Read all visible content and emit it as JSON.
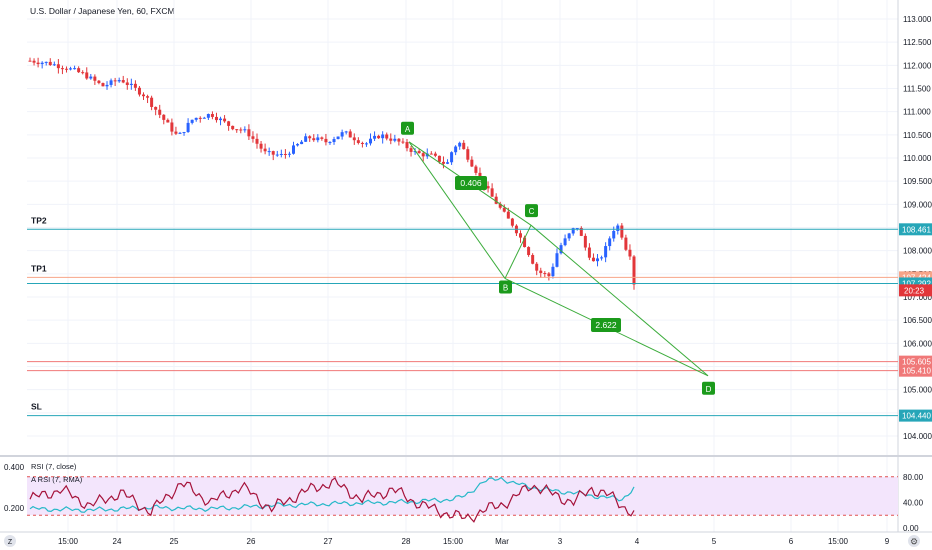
{
  "header": {
    "title": "U.S. Dollar / Japanese Yen, 60, FXCM"
  },
  "colors": {
    "up": "#2962ff",
    "down": "#e2363a",
    "pattern": "#3cac3c",
    "teal": "#26a6b8",
    "orange": "#f7a488",
    "red": "#f07878",
    "rsi_bg": "#f3e5fc"
  },
  "price_axis": {
    "ticks": [
      "113.000",
      "112.500",
      "112.000",
      "111.500",
      "111.000",
      "110.500",
      "110.000",
      "109.500",
      "109.000",
      "108.500",
      "108.000",
      "107.500",
      "107.000",
      "106.500",
      "106.000",
      "105.500",
      "105.000",
      "104.500",
      "104.000"
    ]
  },
  "time_axis": {
    "ticks": [
      "15:00",
      "24",
      "25",
      "26",
      "27",
      "28",
      "15:00",
      "Mar",
      "3",
      "4",
      "5",
      "6",
      "15:00",
      "9"
    ]
  },
  "levels": [
    {
      "label": "TP2",
      "price": 108.461,
      "value_text": "108.461",
      "color": "#26a6b8"
    },
    {
      "label": "TP1",
      "price": 107.424,
      "value_text": "107.424",
      "color": "#f7a488"
    },
    {
      "label": "",
      "price": 107.292,
      "value_text": "107.292",
      "color": "#26a6b8"
    },
    {
      "label": "",
      "price": 105.605,
      "value_text": "105.605",
      "color": "#f07878"
    },
    {
      "label": "",
      "price": 105.41,
      "value_text": "105.410",
      "color": "#f07878"
    },
    {
      "label": "SL",
      "price": 104.44,
      "value_text": "104.440",
      "color": "#26a6b8"
    }
  ],
  "current_price": {
    "price": 107.3,
    "countdown": "20:23",
    "color": "#e2363a"
  },
  "pattern": {
    "points": [
      {
        "label": "A",
        "price": 110.35
      },
      {
        "label": "B",
        "price": 107.4
      },
      {
        "label": "C",
        "price": 108.55
      },
      {
        "label": "D",
        "price": 105.3
      }
    ],
    "ratios": [
      "0.406",
      "2.622"
    ]
  },
  "rsi": {
    "legend_1": "RSI (7, close)",
    "legend_2": "A RSI (7, RMA)",
    "left_ticks": [
      "0.400",
      "0.200"
    ],
    "right_ticks": [
      "80.00",
      "40.00",
      "0.00"
    ],
    "upper_band": 80,
    "lower_band": 20
  },
  "footer": {
    "left_icon": "Z",
    "right_icon": "gear-icon"
  },
  "chart_data": {
    "type": "candlestick",
    "title": "U.S. Dollar / Japanese Yen, 60, FXCM",
    "xlabel": "",
    "ylabel": "",
    "ylim": [
      103.6,
      113.3
    ],
    "shape": [
      [
        0,
        112.1
      ],
      [
        0.03,
        112.05
      ],
      [
        0.06,
        111.95
      ],
      [
        0.09,
        111.8
      ],
      [
        0.12,
        111.55
      ],
      [
        0.15,
        111.7
      ],
      [
        0.19,
        111.35
      ],
      [
        0.22,
        110.85
      ],
      [
        0.245,
        110.45
      ],
      [
        0.27,
        110.85
      ],
      [
        0.3,
        110.95
      ],
      [
        0.33,
        110.7
      ],
      [
        0.36,
        110.55
      ],
      [
        0.39,
        110.1
      ],
      [
        0.42,
        110.05
      ],
      [
        0.46,
        110.45
      ],
      [
        0.49,
        110.35
      ],
      [
        0.52,
        110.55
      ],
      [
        0.555,
        110.3
      ],
      [
        0.58,
        110.5
      ],
      [
        0.61,
        110.35
      ],
      [
        0.64,
        110.1
      ],
      [
        0.665,
        110.05
      ],
      [
        0.69,
        109.85
      ],
      [
        0.7,
        110.2
      ],
      [
        0.71,
        110.35
      ],
      [
        0.735,
        109.8
      ],
      [
        0.76,
        109.25
      ],
      [
        0.79,
        108.7
      ],
      [
        0.8,
        108.55
      ],
      [
        0.82,
        108.1
      ],
      [
        0.84,
        107.55
      ],
      [
        0.86,
        107.45
      ],
      [
        0.875,
        108.05
      ],
      [
        0.89,
        108.3
      ],
      [
        0.905,
        108.55
      ],
      [
        0.92,
        108.05
      ],
      [
        0.935,
        107.7
      ],
      [
        0.95,
        107.95
      ],
      [
        0.965,
        108.45
      ],
      [
        0.975,
        108.55
      ],
      [
        0.985,
        108.1
      ],
      [
        0.995,
        107.9
      ],
      [
        1.0,
        107.3
      ]
    ],
    "rsi_shape": [
      [
        0,
        45
      ],
      [
        0.05,
        60
      ],
      [
        0.1,
        35
      ],
      [
        0.15,
        55
      ],
      [
        0.2,
        25
      ],
      [
        0.25,
        70
      ],
      [
        0.3,
        40
      ],
      [
        0.35,
        65
      ],
      [
        0.4,
        30
      ],
      [
        0.45,
        55
      ],
      [
        0.5,
        72
      ],
      [
        0.55,
        45
      ],
      [
        0.6,
        60
      ],
      [
        0.65,
        35
      ],
      [
        0.7,
        20
      ],
      [
        0.72,
        15
      ],
      [
        0.76,
        30
      ],
      [
        0.8,
        45
      ],
      [
        0.83,
        68
      ],
      [
        0.86,
        55
      ],
      [
        0.9,
        40
      ],
      [
        0.93,
        62
      ],
      [
        0.96,
        50
      ],
      [
        1.0,
        22
      ]
    ],
    "arsi_shape": [
      [
        0,
        30
      ],
      [
        0.1,
        28
      ],
      [
        0.2,
        32
      ],
      [
        0.3,
        30
      ],
      [
        0.4,
        35
      ],
      [
        0.5,
        38
      ],
      [
        0.6,
        40
      ],
      [
        0.65,
        42
      ],
      [
        0.7,
        45
      ],
      [
        0.72,
        50
      ],
      [
        0.75,
        72
      ],
      [
        0.78,
        78
      ],
      [
        0.8,
        70
      ],
      [
        0.85,
        60
      ],
      [
        0.9,
        55
      ],
      [
        0.95,
        48
      ],
      [
        0.98,
        45
      ],
      [
        1.0,
        62
      ]
    ]
  }
}
